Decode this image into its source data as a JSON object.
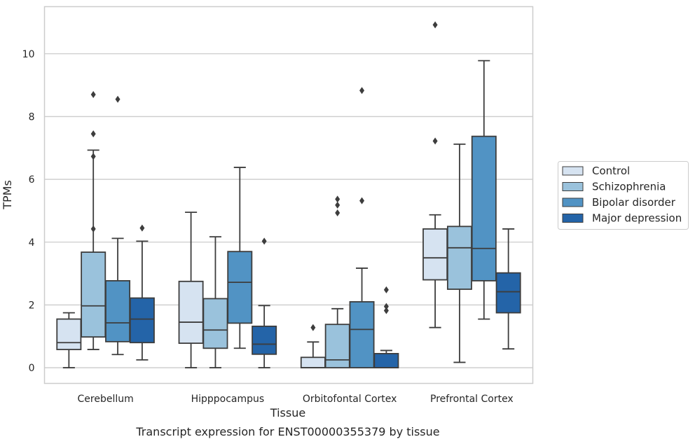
{
  "chart_data": {
    "type": "box",
    "caption": "Transcript expression for ENST00000355379 by tissue",
    "xlabel": "Tissue",
    "ylabel": "TPMs",
    "ylim": [
      -0.5,
      11.5
    ],
    "yticks": [
      0,
      2,
      4,
      6,
      8,
      10
    ],
    "grid": true,
    "legend_position": "right",
    "categories": [
      "Cerebellum",
      "Hipppocampus",
      "Orbitofontal Cortex",
      "Prefrontal Cortex"
    ],
    "series": [
      {
        "name": "Control",
        "color": "#d6e3f1",
        "boxes": [
          {
            "whislo": 0.0,
            "q1": 0.58,
            "med": 0.8,
            "q3": 1.55,
            "whishi": 1.75,
            "fliers": []
          },
          {
            "whislo": 0.0,
            "q1": 0.78,
            "med": 1.45,
            "q3": 2.75,
            "whishi": 4.95,
            "fliers": []
          },
          {
            "whislo": 0.0,
            "q1": 0.0,
            "med": 0.0,
            "q3": 0.33,
            "whishi": 0.82,
            "fliers": [
              1.28
            ]
          },
          {
            "whislo": 1.28,
            "q1": 2.8,
            "med": 3.5,
            "q3": 4.42,
            "whishi": 4.87,
            "fliers": [
              7.22,
              10.92
            ]
          }
        ]
      },
      {
        "name": "Schizophrenia",
        "color": "#9ac2dc",
        "boxes": [
          {
            "whislo": 0.58,
            "q1": 0.98,
            "med": 1.97,
            "q3": 3.68,
            "whishi": 6.93,
            "fliers": [
              4.42,
              6.73,
              7.45,
              8.7
            ]
          },
          {
            "whislo": 0.0,
            "q1": 0.62,
            "med": 1.2,
            "q3": 2.2,
            "whishi": 4.17,
            "fliers": []
          },
          {
            "whislo": 0.0,
            "q1": 0.0,
            "med": 0.25,
            "q3": 1.38,
            "whishi": 1.88,
            "fliers": [
              4.93,
              5.18,
              5.37
            ]
          },
          {
            "whislo": 0.17,
            "q1": 2.5,
            "med": 3.82,
            "q3": 4.5,
            "whishi": 7.12,
            "fliers": []
          }
        ]
      },
      {
        "name": "Bipolar disorder",
        "color": "#5193c4",
        "boxes": [
          {
            "whislo": 0.42,
            "q1": 0.83,
            "med": 1.43,
            "q3": 2.77,
            "whishi": 4.12,
            "fliers": [
              8.55
            ]
          },
          {
            "whislo": 0.62,
            "q1": 1.42,
            "med": 2.72,
            "q3": 3.7,
            "whishi": 6.38,
            "fliers": []
          },
          {
            "whislo": 0.0,
            "q1": 0.0,
            "med": 1.22,
            "q3": 2.1,
            "whishi": 3.17,
            "fliers": [
              5.32,
              8.83
            ]
          },
          {
            "whislo": 1.55,
            "q1": 2.77,
            "med": 3.8,
            "q3": 7.37,
            "whishi": 9.78,
            "fliers": []
          }
        ]
      },
      {
        "name": "Major depression",
        "color": "#2464a8",
        "boxes": [
          {
            "whislo": 0.25,
            "q1": 0.8,
            "med": 1.55,
            "q3": 2.22,
            "whishi": 4.03,
            "fliers": [
              4.45
            ]
          },
          {
            "whislo": 0.0,
            "q1": 0.43,
            "med": 0.75,
            "q3": 1.32,
            "whishi": 1.98,
            "fliers": [
              4.03
            ]
          },
          {
            "whislo": 0.0,
            "q1": 0.0,
            "med": 0.0,
            "q3": 0.45,
            "whishi": 0.55,
            "fliers": [
              1.82,
              1.95,
              2.48
            ]
          },
          {
            "whislo": 0.6,
            "q1": 1.75,
            "med": 2.42,
            "q3": 3.02,
            "whishi": 4.42,
            "fliers": []
          }
        ]
      }
    ]
  },
  "style": {
    "axes_edge_color": "#cccccc",
    "grid_color": "#cccccc",
    "box_line_color": "#3d3d3d"
  }
}
